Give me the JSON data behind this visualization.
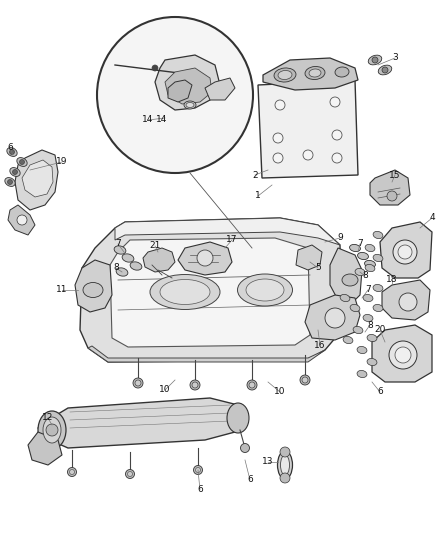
{
  "background_color": "#ffffff",
  "fig_width": 4.38,
  "fig_height": 5.33,
  "dpi": 100,
  "text_color": "#111111",
  "label_fontsize": 6.5,
  "line_color": "#555555",
  "line_width": 0.6,
  "part_edge_color": "#333333",
  "part_fill": "#e8e8e8",
  "part_lw": 0.8
}
